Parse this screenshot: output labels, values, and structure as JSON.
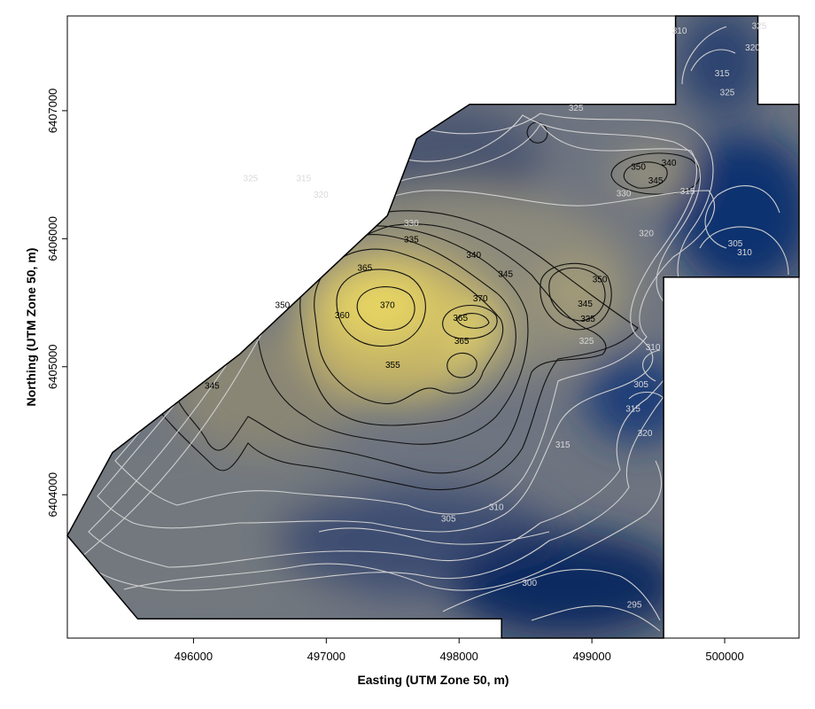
{
  "chart_data": {
    "type": "heatmap",
    "title": "",
    "xlabel": "Easting (UTM Zone 50, m)",
    "ylabel": "Northing (UTM Zone 50, m)",
    "xlim": [
      495050,
      500560
    ],
    "ylim": [
      6402880,
      6407740
    ],
    "x_ticks": [
      496000,
      497000,
      498000,
      499000,
      500000
    ],
    "y_ticks": [
      6404000,
      6405000,
      6406000,
      6407000
    ],
    "x_tick_labels": [
      "496000",
      "497000",
      "498000",
      "499000",
      "500000"
    ],
    "y_tick_labels": [
      "6404000",
      "6405000",
      "6406000",
      "6407000"
    ],
    "z_range": [
      290,
      375
    ],
    "color_low": "#0a2150",
    "color_mid": "#8a8a80",
    "color_high": "#f0e060",
    "boundary": [
      [
        495580,
        6403030
      ],
      [
        495050,
        6403680
      ],
      [
        495390,
        6404330
      ],
      [
        496350,
        6405100
      ],
      [
        497130,
        6405860
      ],
      [
        497460,
        6406180
      ],
      [
        497680,
        6406780
      ],
      [
        498080,
        6407050
      ],
      [
        499630,
        6407050
      ],
      [
        499630,
        6407740
      ],
      [
        500250,
        6407740
      ],
      [
        500250,
        6407050
      ],
      [
        500560,
        6407050
      ],
      [
        500560,
        6405700
      ],
      [
        499540,
        6405700
      ],
      [
        499540,
        6402880
      ],
      [
        498320,
        6402880
      ],
      [
        498320,
        6403030
      ]
    ],
    "contour_labels": [
      {
        "value": "370",
        "x": 497460,
        "y": 6405460,
        "tone": "dark"
      },
      {
        "value": "365",
        "x": 497290,
        "y": 6405750,
        "tone": "dark"
      },
      {
        "value": "370",
        "x": 498160,
        "y": 6405510,
        "tone": "dark"
      },
      {
        "value": "365",
        "x": 498010,
        "y": 6405360,
        "tone": "dark"
      },
      {
        "value": "365",
        "x": 498020,
        "y": 6405180,
        "tone": "dark"
      },
      {
        "value": "360",
        "x": 497120,
        "y": 6405380,
        "tone": "dark"
      },
      {
        "value": "355",
        "x": 497500,
        "y": 6404990,
        "tone": "dark"
      },
      {
        "value": "350",
        "x": 496670,
        "y": 6405460,
        "tone": "dark"
      },
      {
        "value": "345",
        "x": 496140,
        "y": 6404830,
        "tone": "dark"
      },
      {
        "value": "345",
        "x": 498350,
        "y": 6405700,
        "tone": "dark"
      },
      {
        "value": "345",
        "x": 498950,
        "y": 6405470,
        "tone": "dark"
      },
      {
        "value": "340",
        "x": 498110,
        "y": 6405850,
        "tone": "dark"
      },
      {
        "value": "335",
        "x": 497640,
        "y": 6405970,
        "tone": "dark"
      },
      {
        "value": "335",
        "x": 498970,
        "y": 6405350,
        "tone": "dark"
      },
      {
        "value": "350",
        "x": 499060,
        "y": 6405660,
        "tone": "dark"
      },
      {
        "value": "340",
        "x": 499580,
        "y": 6406570,
        "tone": "dark"
      },
      {
        "value": "350",
        "x": 499350,
        "y": 6406540,
        "tone": "dark"
      },
      {
        "value": "345",
        "x": 499480,
        "y": 6406430,
        "tone": "dark"
      },
      {
        "value": "330",
        "x": 497640,
        "y": 6406100,
        "tone": "light"
      },
      {
        "value": "330",
        "x": 499240,
        "y": 6406330,
        "tone": "light"
      },
      {
        "value": "325",
        "x": 496430,
        "y": 6406450,
        "tone": "light"
      },
      {
        "value": "325",
        "x": 498880,
        "y": 6407000,
        "tone": "light"
      },
      {
        "value": "325",
        "x": 498960,
        "y": 6405180,
        "tone": "light"
      },
      {
        "value": "325",
        "x": 500020,
        "y": 6407120,
        "tone": "light"
      },
      {
        "value": "325",
        "x": 500260,
        "y": 6407640,
        "tone": "light"
      },
      {
        "value": "320",
        "x": 496960,
        "y": 6406320,
        "tone": "light"
      },
      {
        "value": "320",
        "x": 499410,
        "y": 6406020,
        "tone": "light"
      },
      {
        "value": "320",
        "x": 499400,
        "y": 6404460,
        "tone": "light"
      },
      {
        "value": "320",
        "x": 500210,
        "y": 6407470,
        "tone": "light"
      },
      {
        "value": "315",
        "x": 496830,
        "y": 6406450,
        "tone": "light"
      },
      {
        "value": "315",
        "x": 499720,
        "y": 6406350,
        "tone": "light"
      },
      {
        "value": "315",
        "x": 499310,
        "y": 6404650,
        "tone": "light"
      },
      {
        "value": "315",
        "x": 498780,
        "y": 6404370,
        "tone": "light"
      },
      {
        "value": "315",
        "x": 499980,
        "y": 6407270,
        "tone": "light"
      },
      {
        "value": "310",
        "x": 500150,
        "y": 6405870,
        "tone": "light"
      },
      {
        "value": "310",
        "x": 499460,
        "y": 6405130,
        "tone": "light"
      },
      {
        "value": "310",
        "x": 498280,
        "y": 6403880,
        "tone": "light"
      },
      {
        "value": "310",
        "x": 499660,
        "y": 6407600,
        "tone": "light"
      },
      {
        "value": "305",
        "x": 500080,
        "y": 6405940,
        "tone": "light"
      },
      {
        "value": "305",
        "x": 499370,
        "y": 6404840,
        "tone": "light"
      },
      {
        "value": "305",
        "x": 497920,
        "y": 6403790,
        "tone": "light"
      },
      {
        "value": "300",
        "x": 498530,
        "y": 6403290,
        "tone": "light"
      },
      {
        "value": "295",
        "x": 499320,
        "y": 6403120,
        "tone": "light"
      }
    ]
  }
}
